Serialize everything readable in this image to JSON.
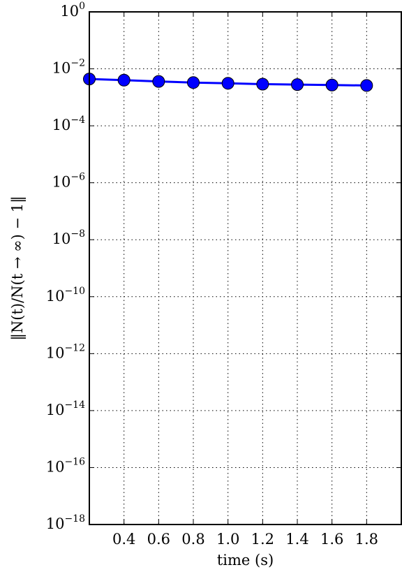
{
  "chart_data": {
    "type": "line",
    "title": "",
    "xlabel": "time (s)",
    "ylabel": "‖N(t)/N(t → ∞) − 1‖",
    "xscale": "linear",
    "yscale": "log",
    "xlim": [
      0.2,
      2.0
    ],
    "ylim": [
      1e-18,
      1
    ],
    "grid": true,
    "x_ticks": [
      {
        "value": 0.4,
        "label": "0.4"
      },
      {
        "value": 0.6,
        "label": "0.6"
      },
      {
        "value": 0.8,
        "label": "0.8"
      },
      {
        "value": 1.0,
        "label": "1.0"
      },
      {
        "value": 1.2,
        "label": "1.2"
      },
      {
        "value": 1.4,
        "label": "1.4"
      },
      {
        "value": 1.6,
        "label": "1.6"
      },
      {
        "value": 1.8,
        "label": "1.8"
      }
    ],
    "y_ticks": [
      {
        "value": 1,
        "base": "10",
        "exp": "0"
      },
      {
        "value": 0.01,
        "base": "10",
        "exp": "−2"
      },
      {
        "value": 0.0001,
        "base": "10",
        "exp": "−4"
      },
      {
        "value": 1e-06,
        "base": "10",
        "exp": "−6"
      },
      {
        "value": 1e-08,
        "base": "10",
        "exp": "−8"
      },
      {
        "value": 1e-10,
        "base": "10",
        "exp": "−10"
      },
      {
        "value": 1e-12,
        "base": "10",
        "exp": "−12"
      },
      {
        "value": 1e-14,
        "base": "10",
        "exp": "−14"
      },
      {
        "value": 1e-16,
        "base": "10",
        "exp": "−16"
      },
      {
        "value": 1e-18,
        "base": "10",
        "exp": "−18"
      }
    ],
    "series": [
      {
        "color": "#0000ff",
        "marker": "circle",
        "x": [
          0.2,
          0.4,
          0.6,
          0.8,
          1.0,
          1.2,
          1.4,
          1.6,
          1.8
        ],
        "y": [
          0.0044,
          0.004,
          0.0036,
          0.0033,
          0.0031,
          0.0029,
          0.0028,
          0.0027,
          0.0026
        ]
      }
    ]
  }
}
